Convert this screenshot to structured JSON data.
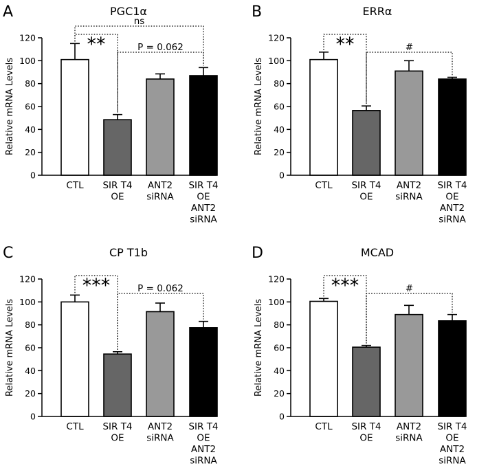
{
  "figure": {
    "bar_colors": [
      "#ffffff",
      "#666666",
      "#999999",
      "#000000"
    ]
  },
  "chart_data": [
    {
      "type": "bar",
      "panel": "A",
      "title": "PGC1α",
      "ylabel": "Relative mRNA Levels",
      "xlabel": "",
      "ylim": [
        0,
        120
      ],
      "yticks": [
        "0",
        "20",
        "40",
        "60",
        "80",
        "100",
        "120"
      ],
      "categories": [
        [
          "CTL"
        ],
        [
          "SIR T4",
          "OE"
        ],
        [
          "ANT2",
          "siRNA"
        ],
        [
          "SIR T4",
          "OE",
          "ANT2",
          "siRNA"
        ]
      ],
      "values": [
        101,
        48.5,
        84,
        87
      ],
      "errors": [
        14,
        4.5,
        4.5,
        7
      ],
      "comparisons": [
        {
          "from": 0,
          "to": 1,
          "label": "**",
          "level": 1
        },
        {
          "from": 1,
          "to": 3,
          "label": "P = 0.062",
          "level": 2
        },
        {
          "from": 0,
          "to": 3,
          "label": "ns",
          "level": 3
        }
      ]
    },
    {
      "type": "bar",
      "panel": "B",
      "title": "ERRα",
      "ylabel": "Relative mRNA Levels",
      "xlabel": "",
      "ylim": [
        0,
        120
      ],
      "yticks": [
        "0",
        "20",
        "40",
        "60",
        "80",
        "100",
        "120"
      ],
      "categories": [
        [
          "CTL"
        ],
        [
          "SIR T4",
          "OE"
        ],
        [
          "ANT2",
          "siRNA"
        ],
        [
          "SIR T4",
          "OE",
          "ANT2",
          "siRNA"
        ]
      ],
      "values": [
        101,
        56.5,
        91,
        84
      ],
      "errors": [
        6.5,
        4,
        9,
        1.5
      ],
      "comparisons": [
        {
          "from": 0,
          "to": 1,
          "label": "**",
          "level": 1
        },
        {
          "from": 1,
          "to": 3,
          "label": "#",
          "level": 2
        }
      ]
    },
    {
      "type": "bar",
      "panel": "C",
      "title": "CP T1b",
      "ylabel": "Relative mRNA Levels",
      "xlabel": "",
      "ylim": [
        0,
        120
      ],
      "yticks": [
        "0",
        "20",
        "40",
        "60",
        "80",
        "100",
        "120"
      ],
      "categories": [
        [
          "CTL"
        ],
        [
          "SIR T4",
          "OE"
        ],
        [
          "ANT2",
          "siRNA"
        ],
        [
          "SIR T4",
          "OE",
          "ANT2",
          "siRNA"
        ]
      ],
      "values": [
        100,
        54.5,
        91.5,
        77.5
      ],
      "errors": [
        6,
        2,
        7.5,
        5.5
      ],
      "comparisons": [
        {
          "from": 0,
          "to": 1,
          "label": "***",
          "level": 1
        },
        {
          "from": 1,
          "to": 3,
          "label": "P = 0.062",
          "level": 2
        }
      ]
    },
    {
      "type": "bar",
      "panel": "D",
      "title": "MCAD",
      "ylabel": "Relative mRNA Levels",
      "xlabel": "",
      "ylim": [
        0,
        120
      ],
      "yticks": [
        "0",
        "20",
        "40",
        "60",
        "80",
        "100",
        "120"
      ],
      "categories": [
        [
          "CTL"
        ],
        [
          "SIR T4",
          "OE"
        ],
        [
          "ANT2",
          "siRNA"
        ],
        [
          "SIR T4",
          "OE",
          "ANT2",
          "siRNA"
        ]
      ],
      "values": [
        100.5,
        60.5,
        89,
        83.5
      ],
      "errors": [
        2.5,
        1.5,
        8,
        5.5
      ],
      "comparisons": [
        {
          "from": 0,
          "to": 1,
          "label": "***",
          "level": 1
        },
        {
          "from": 1,
          "to": 3,
          "label": "#",
          "level": 2
        }
      ]
    }
  ]
}
